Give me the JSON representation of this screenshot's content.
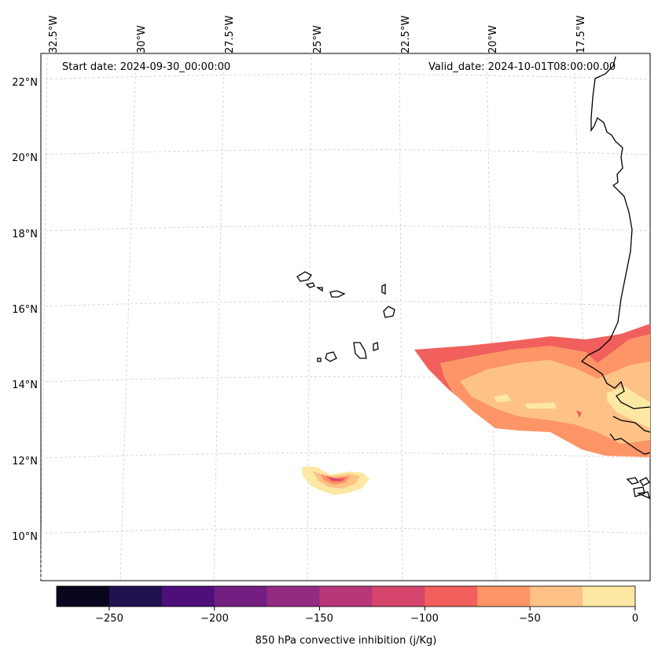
{
  "map": {
    "start_label": "Start date: 2024-09-30_00:00:00",
    "valid_label": "Valid_date: 2024-10-01T08:00:00.00",
    "lon_labels": [
      "32.5°W",
      "30°W",
      "27.5°W",
      "25°W",
      "22.5°W",
      "20°W",
      "17.5°W"
    ],
    "lat_labels": [
      "22°N",
      "20°N",
      "18°N",
      "16°N",
      "14°N",
      "12°N",
      "10°N"
    ],
    "variable": "850 hPa convective inhibition",
    "coastline_color": "#000000",
    "gridline_color": "#cccccc"
  },
  "colorbar": {
    "title": "850 hPa convective inhibition (j/Kg)",
    "tick_labels": [
      "−250",
      "−200",
      "−150",
      "−100",
      "−50",
      "0"
    ],
    "levels": [
      -275,
      -250,
      -225,
      -200,
      -175,
      -150,
      -125,
      -100,
      -75,
      -50,
      -25,
      0
    ],
    "colors": [
      "#07061c",
      "#221150",
      "#4e0f7a",
      "#721f81",
      "#932b80",
      "#b73779",
      "#d6456c",
      "#f1605d",
      "#fd9567",
      "#fec287",
      "#fde8a3"
    ]
  }
}
